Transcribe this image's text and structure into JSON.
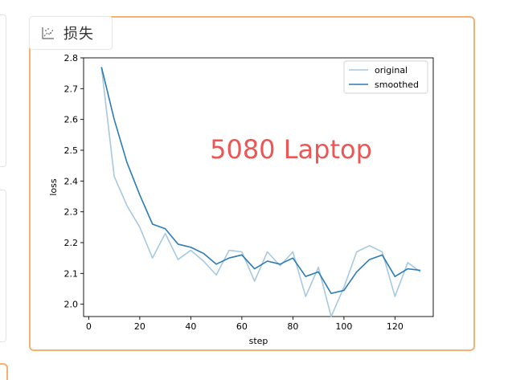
{
  "panel": {
    "tab_label": "损失",
    "tab_icon": "scatter-chart-icon",
    "accent_color": "#f6b072"
  },
  "chart_data": {
    "type": "line",
    "xlabel": "step",
    "ylabel": "loss",
    "xlim": [
      -2,
      135
    ],
    "ylim": [
      1.96,
      2.8
    ],
    "xticks": [
      0,
      20,
      40,
      60,
      80,
      100,
      120
    ],
    "yticks": [
      2.0,
      2.1,
      2.2,
      2.3,
      2.4,
      2.5,
      2.6,
      2.7,
      2.8
    ],
    "legend_position": "top-right",
    "annotation": "5080 Laptop",
    "annotation_color": "#ee5555",
    "x": [
      5,
      10,
      15,
      20,
      25,
      30,
      35,
      40,
      45,
      50,
      55,
      60,
      65,
      70,
      75,
      80,
      85,
      90,
      95,
      100,
      105,
      110,
      115,
      120,
      125,
      130
    ],
    "series": [
      {
        "name": "original",
        "color": "#a7c9df",
        "values": [
          2.77,
          2.415,
          2.32,
          2.25,
          2.15,
          2.23,
          2.145,
          2.175,
          2.14,
          2.095,
          2.175,
          2.17,
          2.075,
          2.17,
          2.125,
          2.17,
          2.025,
          2.12,
          1.96,
          2.055,
          2.17,
          2.19,
          2.17,
          2.025,
          2.135,
          2.105
        ]
      },
      {
        "name": "smoothed",
        "color": "#2b7bb4",
        "values": [
          2.77,
          2.6,
          2.46,
          2.355,
          2.26,
          2.245,
          2.195,
          2.185,
          2.165,
          2.13,
          2.15,
          2.16,
          2.115,
          2.14,
          2.13,
          2.15,
          2.09,
          2.105,
          2.035,
          2.045,
          2.105,
          2.145,
          2.16,
          2.09,
          2.115,
          2.11
        ]
      }
    ]
  }
}
